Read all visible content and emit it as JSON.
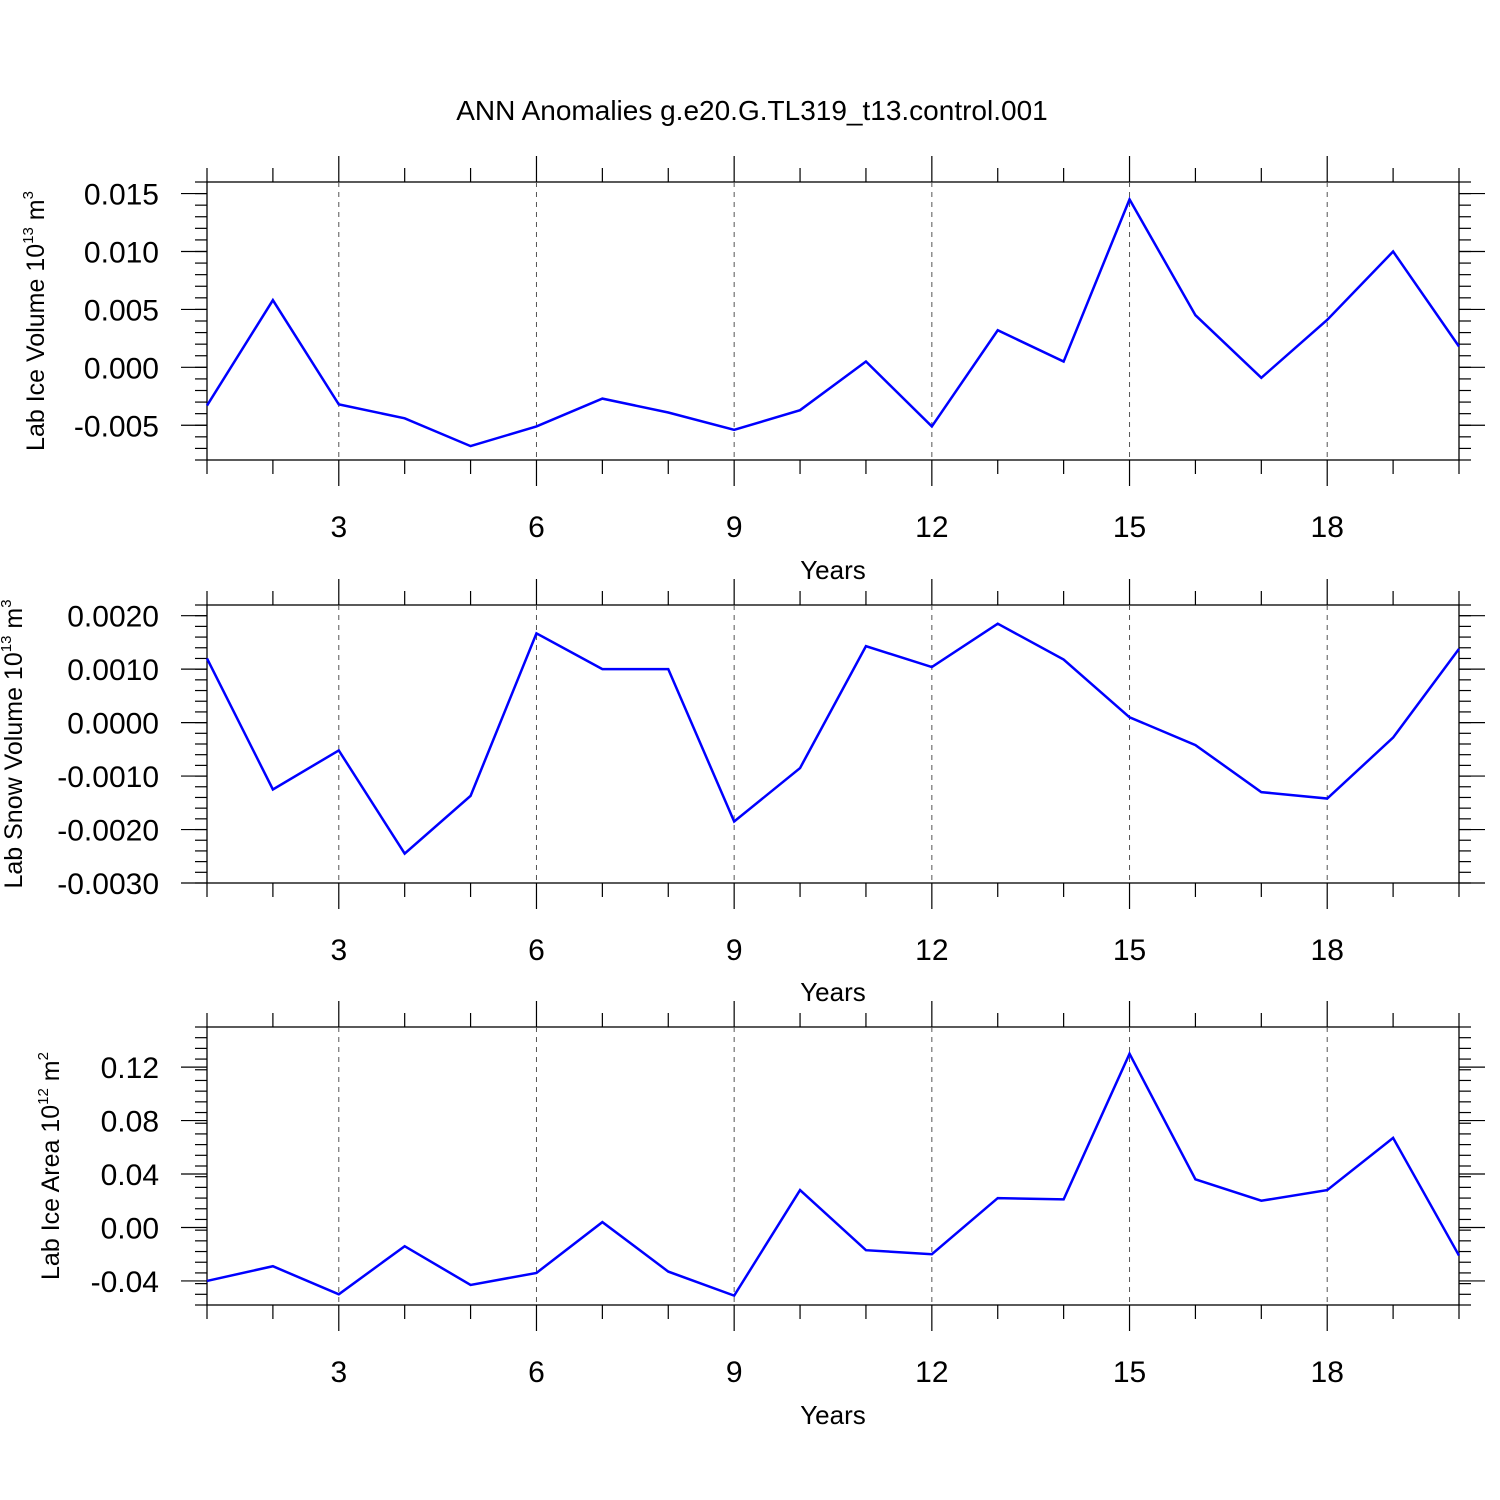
{
  "title": "ANN Anomalies g.e20.G.TL319_t13.control.001",
  "chart_data": [
    {
      "type": "line",
      "ylabel_main": "Lab Ice Volume 10",
      "ylabel_exp": "13",
      "ylabel_unit": "m",
      "ylabel_unit_exp": "3",
      "xlabel": "Years",
      "x": [
        1,
        2,
        3,
        4,
        5,
        6,
        7,
        8,
        9,
        10,
        11,
        12,
        13,
        14,
        15,
        16,
        17,
        18,
        19,
        20
      ],
      "values": [
        -0.0033,
        0.0058,
        -0.0032,
        -0.0044,
        -0.0068,
        -0.0051,
        -0.0027,
        -0.0039,
        -0.0054,
        -0.0037,
        0.0005,
        -0.0051,
        0.0032,
        0.0005,
        0.0145,
        0.0045,
        -0.0009,
        0.0041,
        0.01,
        0.0018
      ],
      "xlim": [
        1,
        20
      ],
      "ylim": [
        -0.008,
        0.016
      ],
      "xticks": [
        3,
        6,
        9,
        12,
        15,
        18
      ],
      "xtick_labels": [
        "3",
        "6",
        "9",
        "12",
        "15",
        "18"
      ],
      "yticks": [
        -0.005,
        0,
        0.005,
        0.01,
        0.015
      ],
      "ytick_labels": [
        "-0.005",
        "0.000",
        "0.005",
        "0.010",
        "0.015"
      ],
      "y_minor_step": 0.001,
      "grid": "x-dashed",
      "color": "#0000ff"
    },
    {
      "type": "line",
      "ylabel_main": "Lab Snow Volume 10",
      "ylabel_exp": "13",
      "ylabel_unit": "m",
      "ylabel_unit_exp": "3",
      "xlabel": "Years",
      "x": [
        1,
        2,
        3,
        4,
        5,
        6,
        7,
        8,
        9,
        10,
        11,
        12,
        13,
        14,
        15,
        16,
        17,
        18,
        19,
        20
      ],
      "values": [
        0.0012,
        -0.00125,
        -0.00052,
        -0.00245,
        -0.00137,
        0.00167,
        0.001,
        0.001,
        -0.00185,
        -0.00085,
        0.00143,
        0.00104,
        0.00185,
        0.00118,
        0.0001,
        -0.00042,
        -0.0013,
        -0.00142,
        -0.00028,
        0.00138
      ],
      "xlim": [
        1,
        20
      ],
      "ylim": [
        -0.003,
        0.0022
      ],
      "xticks": [
        3,
        6,
        9,
        12,
        15,
        18
      ],
      "xtick_labels": [
        "3",
        "6",
        "9",
        "12",
        "15",
        "18"
      ],
      "yticks": [
        -0.003,
        -0.002,
        -0.001,
        0,
        0.001,
        0.002
      ],
      "ytick_labels": [
        "-0.0030",
        "-0.0020",
        "-0.0010",
        "0.0000",
        "0.0010",
        "0.0020"
      ],
      "y_minor_step": 0.0002,
      "grid": "x-dashed",
      "color": "#0000ff"
    },
    {
      "type": "line",
      "ylabel_main": "Lab Ice Area 10",
      "ylabel_exp": "12",
      "ylabel_unit": "m",
      "ylabel_unit_exp": "2",
      "xlabel": "Years",
      "x": [
        1,
        2,
        3,
        4,
        5,
        6,
        7,
        8,
        9,
        10,
        11,
        12,
        13,
        14,
        15,
        16,
        17,
        18,
        19,
        20
      ],
      "values": [
        -0.04,
        -0.029,
        -0.05,
        -0.014,
        -0.043,
        -0.034,
        0.004,
        -0.033,
        -0.051,
        0.028,
        -0.017,
        -0.02,
        0.022,
        0.021,
        0.13,
        0.036,
        0.02,
        0.028,
        0.067,
        -0.021
      ],
      "xlim": [
        1,
        20
      ],
      "ylim": [
        -0.058,
        0.15
      ],
      "xticks": [
        3,
        6,
        9,
        12,
        15,
        18
      ],
      "xtick_labels": [
        "3",
        "6",
        "9",
        "12",
        "15",
        "18"
      ],
      "yticks": [
        -0.04,
        0,
        0.04,
        0.08,
        0.12
      ],
      "ytick_labels": [
        "-0.04",
        "0.00",
        "0.04",
        "0.08",
        "0.12"
      ],
      "y_minor_step": 0.008,
      "grid": "x-dashed",
      "color": "#0000ff"
    }
  ]
}
